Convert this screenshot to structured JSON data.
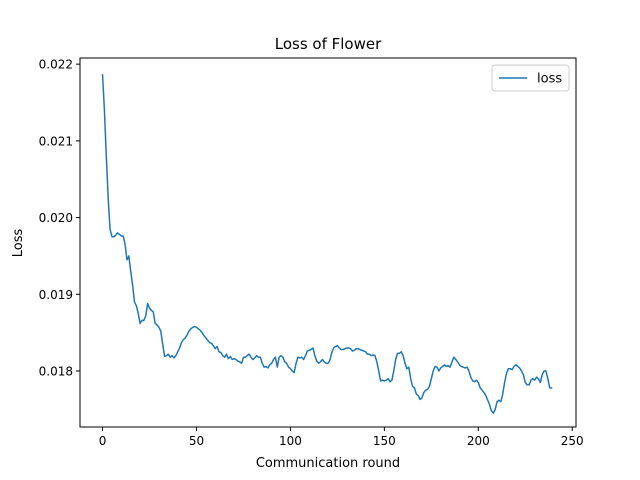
{
  "chart_data": {
    "type": "line",
    "title": "Loss of Flower",
    "xlabel": "Communication round",
    "ylabel": "Loss",
    "xlim": [
      -12,
      252
    ],
    "ylim": [
      0.01727,
      0.02208
    ],
    "xticks": [
      0,
      50,
      100,
      150,
      200,
      250
    ],
    "yticks": [
      0.018,
      0.019,
      0.02,
      0.021,
      0.022
    ],
    "ytick_labels": [
      "0.018",
      "0.019",
      "0.020",
      "0.021",
      "0.022"
    ],
    "grid": false,
    "legend_position": "top-right",
    "series": [
      {
        "name": "loss",
        "color": "#1f77b4",
        "points": [
          [
            0,
            0.02186
          ],
          [
            1,
            0.0214
          ],
          [
            2,
            0.0208
          ],
          [
            3,
            0.02025
          ],
          [
            4,
            0.01985
          ],
          [
            5,
            0.01975
          ],
          [
            6,
            0.01975
          ],
          [
            7,
            0.01977
          ],
          [
            8,
            0.0198
          ],
          [
            9,
            0.01978
          ],
          [
            10,
            0.01976
          ],
          [
            11,
            0.01976
          ],
          [
            12,
            0.01965
          ],
          [
            13,
            0.01945
          ],
          [
            14,
            0.0195
          ],
          [
            15,
            0.0193
          ],
          [
            16,
            0.01912
          ],
          [
            17,
            0.0189
          ],
          [
            18,
            0.01885
          ],
          [
            19,
            0.01875
          ],
          [
            20,
            0.01862
          ],
          [
            21,
            0.01866
          ],
          [
            22,
            0.01866
          ],
          [
            23,
            0.01872
          ],
          [
            24,
            0.01888
          ],
          [
            25,
            0.01882
          ],
          [
            26,
            0.01879
          ],
          [
            27,
            0.01877
          ],
          [
            28,
            0.01862
          ],
          [
            29,
            0.0186
          ],
          [
            30,
            0.01857
          ],
          [
            31,
            0.01852
          ],
          [
            32,
            0.01835
          ],
          [
            33,
            0.01819
          ],
          [
            34,
            0.0182
          ],
          [
            35,
            0.01822
          ],
          [
            36,
            0.01818
          ],
          [
            37,
            0.0182
          ],
          [
            38,
            0.01817
          ],
          [
            39,
            0.0182
          ],
          [
            40,
            0.01825
          ],
          [
            41,
            0.0183
          ],
          [
            42,
            0.01837
          ],
          [
            43,
            0.01841
          ],
          [
            44,
            0.01843
          ],
          [
            45,
            0.01847
          ],
          [
            46,
            0.01852
          ],
          [
            47,
            0.01855
          ],
          [
            48,
            0.01857
          ],
          [
            49,
            0.01858
          ],
          [
            50,
            0.01857
          ],
          [
            51,
            0.01855
          ],
          [
            52,
            0.01853
          ],
          [
            53,
            0.0185
          ],
          [
            54,
            0.01846
          ],
          [
            55,
            0.01843
          ],
          [
            56,
            0.0184
          ],
          [
            57,
            0.01837
          ],
          [
            58,
            0.01836
          ],
          [
            59,
            0.01833
          ],
          [
            60,
            0.01829
          ],
          [
            61,
            0.01832
          ],
          [
            62,
            0.01825
          ],
          [
            63,
            0.01824
          ],
          [
            64,
            0.0182
          ],
          [
            65,
            0.01818
          ],
          [
            66,
            0.01822
          ],
          [
            67,
            0.01816
          ],
          [
            68,
            0.01819
          ],
          [
            69,
            0.01815
          ],
          [
            70,
            0.01816
          ],
          [
            71,
            0.01815
          ],
          [
            72,
            0.01813
          ],
          [
            73,
            0.01812
          ],
          [
            74,
            0.0181
          ],
          [
            75,
            0.01818
          ],
          [
            76,
            0.01818
          ],
          [
            77,
            0.0182
          ],
          [
            78,
            0.01822
          ],
          [
            79,
            0.01818
          ],
          [
            80,
            0.01815
          ],
          [
            81,
            0.01817
          ],
          [
            82,
            0.0182
          ],
          [
            83,
            0.01818
          ],
          [
            84,
            0.01818
          ],
          [
            85,
            0.0181
          ],
          [
            86,
            0.01805
          ],
          [
            87,
            0.01806
          ],
          [
            88,
            0.01804
          ],
          [
            89,
            0.01808
          ],
          [
            90,
            0.0181
          ],
          [
            91,
            0.01815
          ],
          [
            92,
            0.01818
          ],
          [
            93,
            0.01805
          ],
          [
            94,
            0.01818
          ],
          [
            95,
            0.0182
          ],
          [
            96,
            0.01818
          ],
          [
            97,
            0.01812
          ],
          [
            98,
            0.0181
          ],
          [
            99,
            0.01805
          ],
          [
            100,
            0.01803
          ],
          [
            101,
            0.018
          ],
          [
            102,
            0.01798
          ],
          [
            103,
            0.0181
          ],
          [
            104,
            0.01818
          ],
          [
            105,
            0.01817
          ],
          [
            106,
            0.01818
          ],
          [
            107,
            0.01815
          ],
          [
            108,
            0.0182
          ],
          [
            109,
            0.01826
          ],
          [
            110,
            0.01827
          ],
          [
            111,
            0.01828
          ],
          [
            112,
            0.0183
          ],
          [
            113,
            0.0182
          ],
          [
            114,
            0.01813
          ],
          [
            115,
            0.0181
          ],
          [
            116,
            0.01812
          ],
          [
            117,
            0.01815
          ],
          [
            118,
            0.01812
          ],
          [
            119,
            0.0181
          ],
          [
            120,
            0.0181
          ],
          [
            121,
            0.01814
          ],
          [
            122,
            0.01824
          ],
          [
            123,
            0.0183
          ],
          [
            124,
            0.01832
          ],
          [
            125,
            0.01833
          ],
          [
            126,
            0.0183
          ],
          [
            127,
            0.01828
          ],
          [
            128,
            0.01828
          ],
          [
            129,
            0.01829
          ],
          [
            130,
            0.0183
          ],
          [
            131,
            0.0183
          ],
          [
            132,
            0.01829
          ],
          [
            133,
            0.01826
          ],
          [
            134,
            0.01827
          ],
          [
            135,
            0.01829
          ],
          [
            136,
            0.01829
          ],
          [
            137,
            0.01828
          ],
          [
            138,
            0.01827
          ],
          [
            139,
            0.01826
          ],
          [
            140,
            0.01825
          ],
          [
            141,
            0.01822
          ],
          [
            142,
            0.01822
          ],
          [
            143,
            0.0182
          ],
          [
            144,
            0.01821
          ],
          [
            145,
            0.0182
          ],
          [
            146,
            0.01812
          ],
          [
            147,
            0.018
          ],
          [
            148,
            0.01787
          ],
          [
            149,
            0.01788
          ],
          [
            150,
            0.01787
          ],
          [
            151,
            0.01788
          ],
          [
            152,
            0.0179
          ],
          [
            153,
            0.01786
          ],
          [
            154,
            0.01788
          ],
          [
            155,
            0.018
          ],
          [
            156,
            0.01815
          ],
          [
            157,
            0.01823
          ],
          [
            158,
            0.01823
          ],
          [
            159,
            0.01825
          ],
          [
            160,
            0.0182
          ],
          [
            161,
            0.0181
          ],
          [
            162,
            0.01803
          ],
          [
            163,
            0.01805
          ],
          [
            164,
            0.0179
          ],
          [
            165,
            0.0178
          ],
          [
            166,
            0.01778
          ],
          [
            167,
            0.0177
          ],
          [
            168,
            0.01768
          ],
          [
            169,
            0.01763
          ],
          [
            170,
            0.01765
          ],
          [
            171,
            0.01772
          ],
          [
            172,
            0.01775
          ],
          [
            173,
            0.01776
          ],
          [
            174,
            0.0178
          ],
          [
            175,
            0.0179
          ],
          [
            176,
            0.018
          ],
          [
            177,
            0.01806
          ],
          [
            178,
            0.01805
          ],
          [
            179,
            0.018
          ],
          [
            180,
            0.01804
          ],
          [
            181,
            0.01806
          ],
          [
            182,
            0.01808
          ],
          [
            183,
            0.01806
          ],
          [
            184,
            0.01807
          ],
          [
            185,
            0.01805
          ],
          [
            186,
            0.01812
          ],
          [
            187,
            0.01818
          ],
          [
            188,
            0.01815
          ],
          [
            189,
            0.01812
          ],
          [
            190,
            0.01808
          ],
          [
            191,
            0.01806
          ],
          [
            192,
            0.01805
          ],
          [
            193,
            0.01804
          ],
          [
            194,
            0.01805
          ],
          [
            195,
            0.018
          ],
          [
            196,
            0.01792
          ],
          [
            197,
            0.01787
          ],
          [
            198,
            0.01786
          ],
          [
            199,
            0.01788
          ],
          [
            200,
            0.01785
          ],
          [
            201,
            0.01778
          ],
          [
            202,
            0.01775
          ],
          [
            203,
            0.01772
          ],
          [
            204,
            0.01768
          ],
          [
            205,
            0.01762
          ],
          [
            206,
            0.01756
          ],
          [
            207,
            0.01748
          ],
          [
            208,
            0.01745
          ],
          [
            209,
            0.0175
          ],
          [
            210,
            0.0176
          ],
          [
            211,
            0.01762
          ],
          [
            212,
            0.0176
          ],
          [
            213,
            0.0177
          ],
          [
            214,
            0.01785
          ],
          [
            215,
            0.01797
          ],
          [
            216,
            0.01803
          ],
          [
            217,
            0.01803
          ],
          [
            218,
            0.01802
          ],
          [
            219,
            0.01806
          ],
          [
            220,
            0.01808
          ],
          [
            221,
            0.01806
          ],
          [
            222,
            0.01804
          ],
          [
            223,
            0.018
          ],
          [
            224,
            0.01795
          ],
          [
            225,
            0.01785
          ],
          [
            226,
            0.01782
          ],
          [
            227,
            0.01782
          ],
          [
            228,
            0.01788
          ],
          [
            229,
            0.0179
          ],
          [
            230,
            0.01788
          ],
          [
            231,
            0.01792
          ],
          [
            232,
            0.0179
          ],
          [
            233,
            0.01785
          ],
          [
            234,
            0.01795
          ],
          [
            235,
            0.018
          ],
          [
            236,
            0.018
          ],
          [
            237,
            0.0179
          ],
          [
            238,
            0.01778
          ],
          [
            239,
            0.01778
          ]
        ]
      }
    ]
  }
}
